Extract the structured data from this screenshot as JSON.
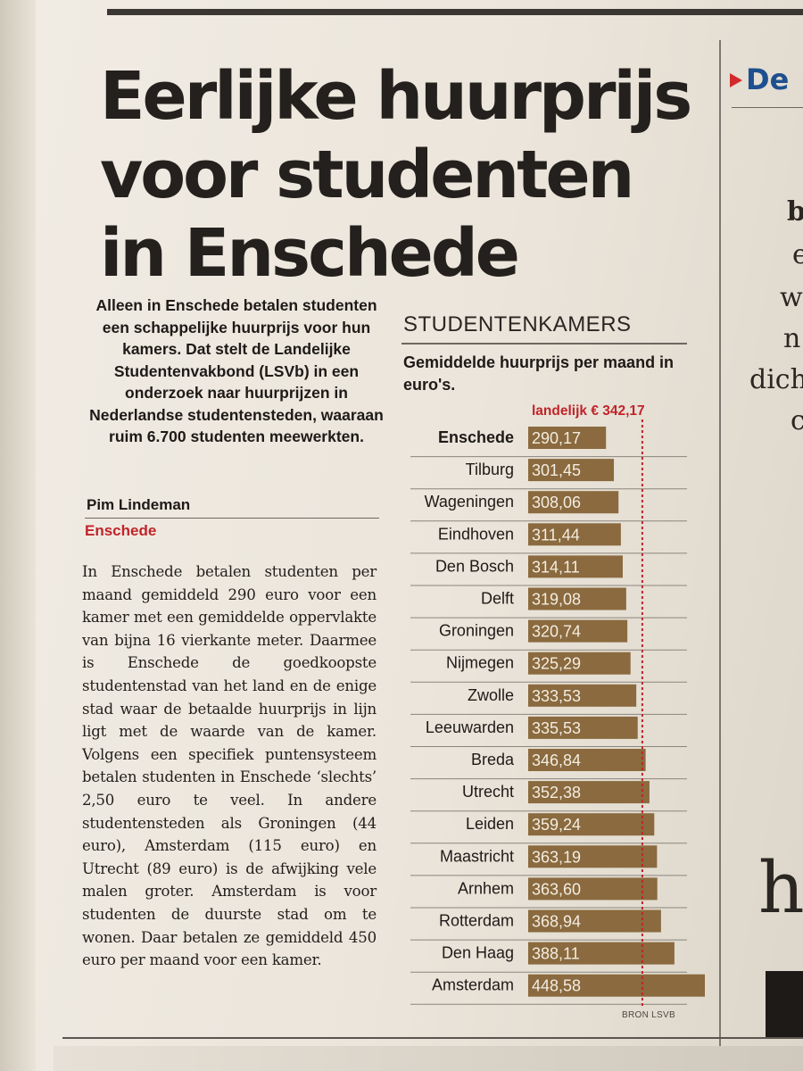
{
  "article": {
    "headline": [
      "Eerlijke huurprijs",
      "voor studenten",
      "in Enschede"
    ],
    "lead": "Alleen in Enschede betalen studenten een schappelijke huurprijs voor hun kamers. Dat stelt de Landelijke Studentenvakbond (LSVb) in een onderzoek naar huurprijzen in Nederlandse studentensteden, waaraan ruim 6.700 studenten meewerkten.",
    "author": "Pim Lindeman",
    "location": "Enschede",
    "body": "In Enschede betalen studenten per maand gemiddeld 290 euro voor een kamer met een gemiddelde oppervlakte van bijna 16 vierkante meter. Daarmee is Enschede de goedkoopste studentenstad van het land en de enige stad waar de betaalde huurprijs in lijn ligt met de waarde van de kamer. Volgens een specifiek puntensysteem betalen studenten in Enschede ‘slechts’ 2,50 euro te veel. In andere studentensteden als Groningen (44 euro), Amsterdam (115 euro) en Utrecht (89 euro) is de afwijking vele malen groter. Amsterdam is voor studenten de duurste stad om te wonen. Daar betalen ze gemiddeld 450 euro per maand voor een kamer."
  },
  "right_column": {
    "heading_fragment": "De",
    "fragments": [
      "b",
      "e",
      "w",
      "n",
      "dich",
      "c",
      "h"
    ]
  },
  "colors": {
    "bar": "#8a6a3e",
    "bar_text": "#f3ede2",
    "average_line": "#c0242a",
    "location": "#c0242a"
  },
  "chart_data": {
    "type": "bar",
    "orientation": "horizontal",
    "title": "STUDENTENKAMERS",
    "subtitle": "Gemiddelde huurprijs per maand in euro's.",
    "average_label": "landelijk € 342,17",
    "average_value": 342.17,
    "source": "BRON LSVB",
    "categories": [
      "Enschede",
      "Tilburg",
      "Wageningen",
      "Eindhoven",
      "Den Bosch",
      "Delft",
      "Groningen",
      "Nijmegen",
      "Zwolle",
      "Leeuwarden",
      "Breda",
      "Utrecht",
      "Leiden",
      "Maastricht",
      "Arnhem",
      "Rotterdam",
      "Den Haag",
      "Amsterdam"
    ],
    "values": [
      290.17,
      301.45,
      308.06,
      311.44,
      314.11,
      319.08,
      320.74,
      325.29,
      333.53,
      335.53,
      346.84,
      352.38,
      359.24,
      363.19,
      363.6,
      368.94,
      388.11,
      448.58
    ],
    "value_labels": [
      "290,17",
      "301,45",
      "308,06",
      "311,44",
      "314,11",
      "319,08",
      "320,74",
      "325,29",
      "333,53",
      "335,53",
      "346,84",
      "352,38",
      "359,24",
      "363,19",
      "363,60",
      "368,94",
      "388,11",
      "448,58"
    ],
    "highlight_category": "Enschede",
    "gridlines": true,
    "legend": "none"
  }
}
